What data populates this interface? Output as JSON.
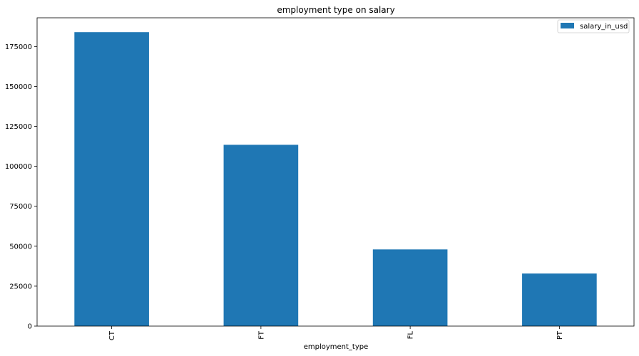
{
  "chart_data": {
    "type": "bar",
    "title": "employment type on salary",
    "xlabel": "employment_type",
    "ylabel": "",
    "categories": [
      "CT",
      "FT",
      "FL",
      "PT"
    ],
    "series": [
      {
        "name": "salary_in_usd",
        "values": [
          184000,
          113500,
          48000,
          32900
        ],
        "color": "#1f77b4"
      }
    ],
    "ylim": [
      0,
      193000
    ],
    "yticks": [
      0,
      25000,
      50000,
      75000,
      100000,
      125000,
      150000,
      175000
    ],
    "ytick_labels": [
      "0",
      "25000",
      "50000",
      "75000",
      "100000",
      "125000",
      "150000",
      "175000"
    ],
    "grid": false,
    "legend_position": "top-right",
    "xtick_rotation": "vertical"
  }
}
